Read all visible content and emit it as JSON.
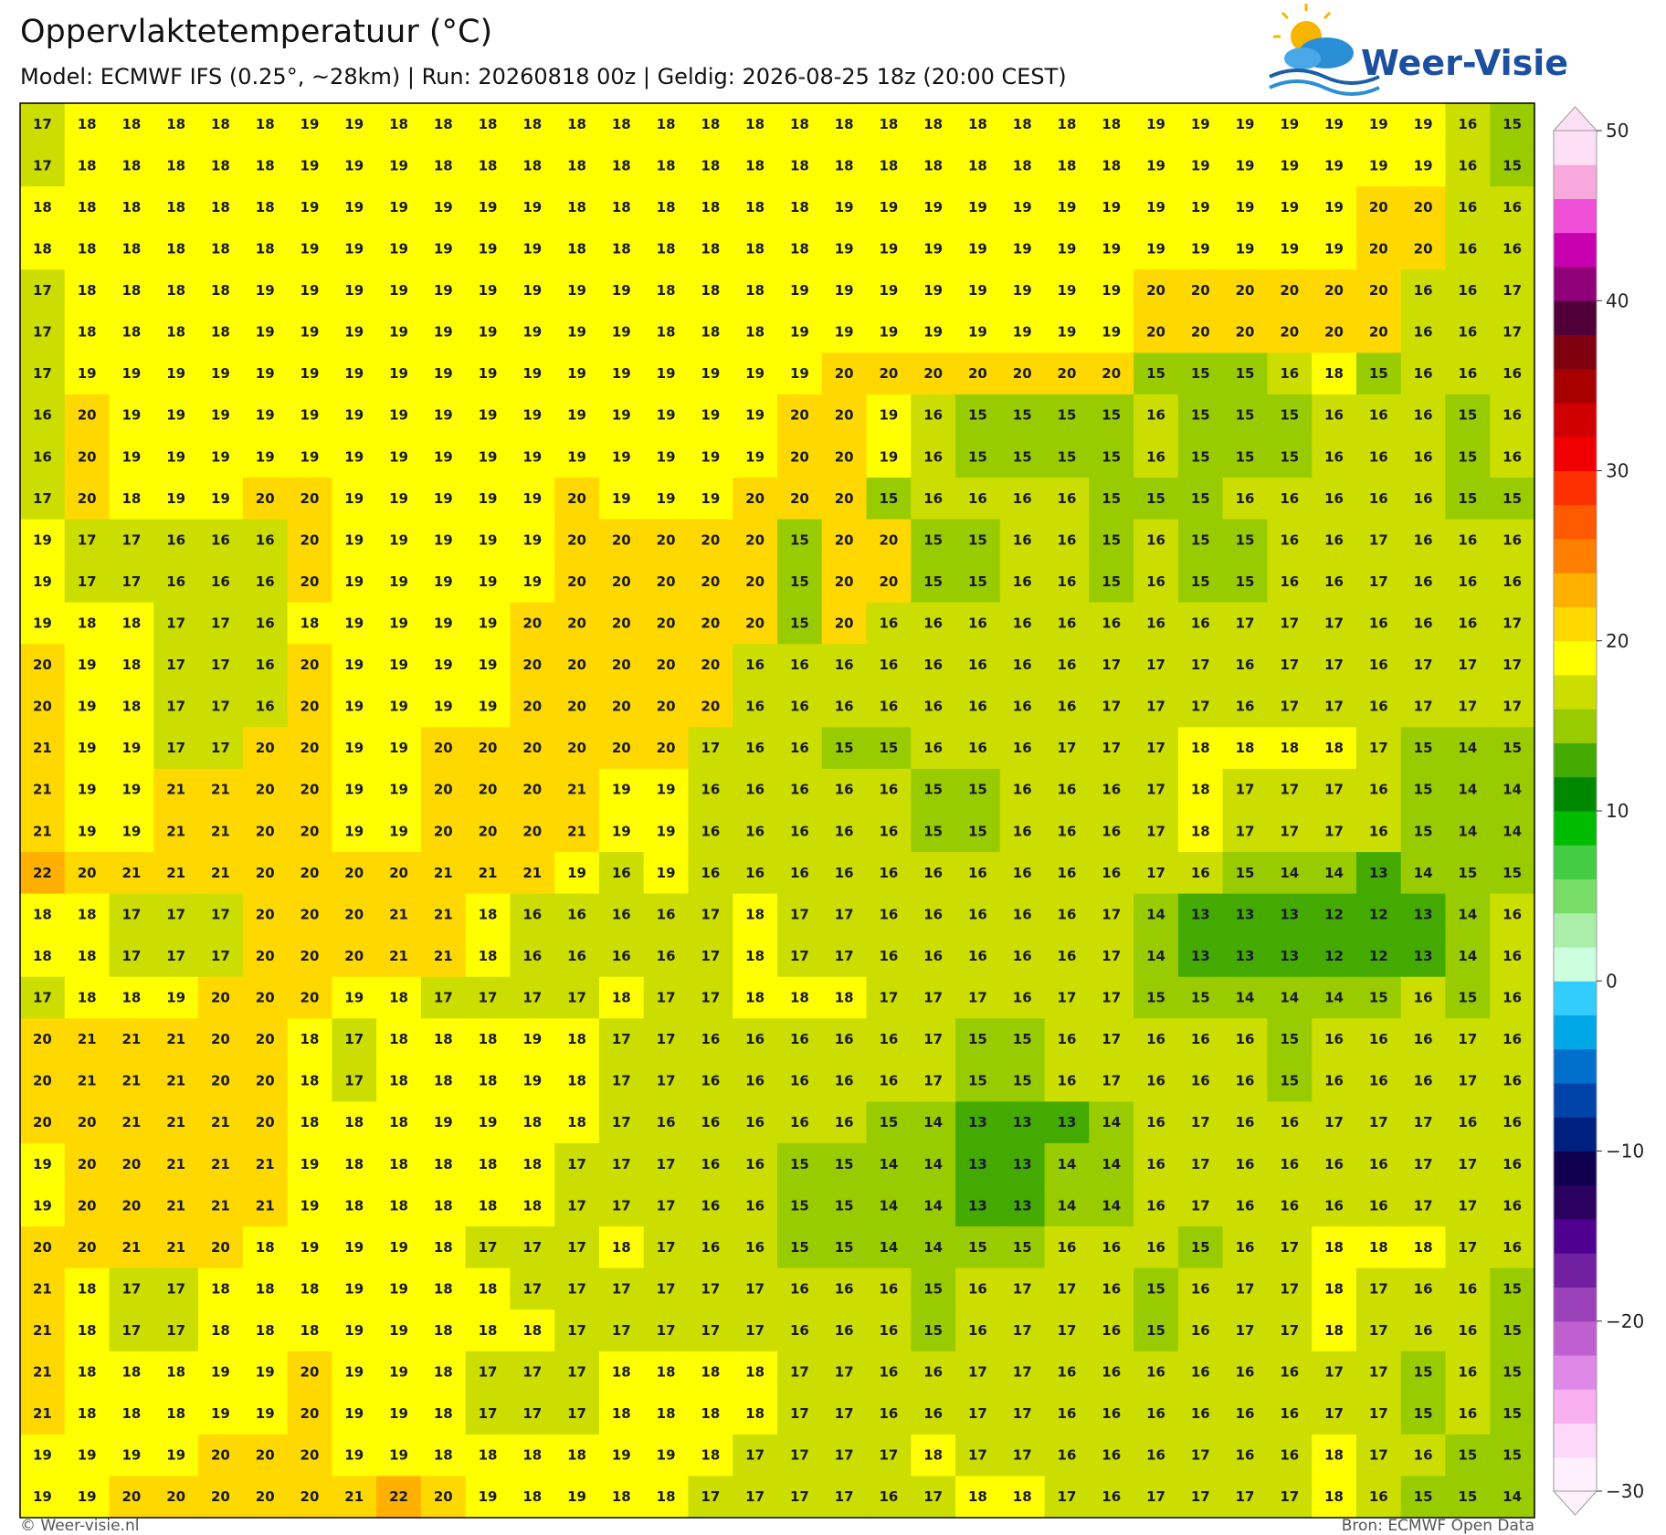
{
  "header": {
    "title": "Oppervlaktetemperatuur (°C)",
    "subtitle": "Model: ECMWF IFS (0.25°, ~28km)  |  Run: 20260818 00z  |  Geldig: 2026-08-25 18z (20:00 CEST)"
  },
  "logo": "Weer-Visie",
  "map": {
    "grid": [
      [
        17,
        18,
        18,
        18,
        18,
        18,
        19,
        19,
        18,
        18,
        18,
        18,
        18,
        18,
        18,
        18,
        18,
        18,
        18,
        18,
        18,
        18,
        18,
        18,
        18,
        19,
        19,
        19,
        19,
        19,
        19,
        19,
        16,
        15
      ],
      [
        17,
        18,
        18,
        18,
        18,
        18,
        19,
        19,
        19,
        18,
        18,
        18,
        18,
        18,
        18,
        18,
        18,
        18,
        18,
        18,
        18,
        18,
        18,
        18,
        18,
        19,
        19,
        19,
        19,
        19,
        19,
        19,
        16,
        15
      ],
      [
        18,
        18,
        18,
        18,
        18,
        18,
        19,
        19,
        19,
        19,
        19,
        19,
        18,
        18,
        18,
        18,
        18,
        18,
        19,
        19,
        19,
        19,
        19,
        19,
        19,
        19,
        19,
        19,
        19,
        19,
        20,
        20,
        16,
        16
      ],
      [
        18,
        18,
        18,
        18,
        18,
        18,
        19,
        19,
        19,
        19,
        19,
        19,
        18,
        18,
        18,
        18,
        18,
        18,
        19,
        19,
        19,
        19,
        19,
        19,
        19,
        19,
        19,
        19,
        19,
        19,
        20,
        20,
        16,
        16
      ],
      [
        17,
        18,
        18,
        18,
        18,
        19,
        19,
        19,
        19,
        19,
        19,
        19,
        19,
        19,
        18,
        18,
        18,
        19,
        19,
        19,
        19,
        19,
        19,
        19,
        19,
        20,
        20,
        20,
        20,
        20,
        20,
        16,
        16,
        17
      ],
      [
        17,
        18,
        18,
        18,
        18,
        19,
        19,
        19,
        19,
        19,
        19,
        19,
        19,
        19,
        18,
        18,
        18,
        19,
        19,
        19,
        19,
        19,
        19,
        19,
        19,
        20,
        20,
        20,
        20,
        20,
        20,
        16,
        16,
        17
      ],
      [
        17,
        19,
        19,
        19,
        19,
        19,
        19,
        19,
        19,
        19,
        19,
        19,
        19,
        19,
        19,
        19,
        19,
        19,
        20,
        20,
        20,
        20,
        20,
        20,
        20,
        15,
        15,
        15,
        16,
        18,
        15,
        16,
        16,
        16
      ],
      [
        16,
        20,
        19,
        19,
        19,
        19,
        19,
        19,
        19,
        19,
        19,
        19,
        19,
        19,
        19,
        19,
        19,
        20,
        20,
        19,
        16,
        15,
        15,
        15,
        15,
        16,
        15,
        15,
        15,
        16,
        16,
        16,
        15,
        16
      ],
      [
        16,
        20,
        19,
        19,
        19,
        19,
        19,
        19,
        19,
        19,
        19,
        19,
        19,
        19,
        19,
        19,
        19,
        20,
        20,
        19,
        16,
        15,
        15,
        15,
        15,
        16,
        15,
        15,
        15,
        16,
        16,
        16,
        15,
        16
      ],
      [
        17,
        20,
        18,
        19,
        19,
        20,
        20,
        19,
        19,
        19,
        19,
        19,
        20,
        19,
        19,
        19,
        20,
        20,
        20,
        15,
        16,
        16,
        16,
        16,
        15,
        15,
        15,
        16,
        16,
        16,
        16,
        16,
        15,
        15
      ],
      [
        19,
        17,
        17,
        16,
        16,
        16,
        20,
        19,
        19,
        19,
        19,
        19,
        20,
        20,
        20,
        20,
        20,
        15,
        20,
        20,
        15,
        15,
        16,
        16,
        15,
        16,
        15,
        15,
        16,
        16,
        17,
        16,
        16,
        16
      ],
      [
        19,
        17,
        17,
        16,
        16,
        16,
        20,
        19,
        19,
        19,
        19,
        19,
        20,
        20,
        20,
        20,
        20,
        15,
        20,
        20,
        15,
        15,
        16,
        16,
        15,
        16,
        15,
        15,
        16,
        16,
        17,
        16,
        16,
        16
      ],
      [
        19,
        18,
        18,
        17,
        17,
        16,
        18,
        19,
        19,
        19,
        19,
        20,
        20,
        20,
        20,
        20,
        20,
        15,
        20,
        16,
        16,
        16,
        16,
        16,
        16,
        16,
        16,
        17,
        17,
        17,
        16,
        16,
        16,
        17
      ],
      [
        20,
        19,
        18,
        17,
        17,
        16,
        20,
        19,
        19,
        19,
        19,
        20,
        20,
        20,
        20,
        20,
        16,
        16,
        16,
        16,
        16,
        16,
        16,
        16,
        17,
        17,
        17,
        16,
        17,
        17,
        16,
        17,
        17,
        17
      ],
      [
        20,
        19,
        18,
        17,
        17,
        16,
        20,
        19,
        19,
        19,
        19,
        20,
        20,
        20,
        20,
        20,
        16,
        16,
        16,
        16,
        16,
        16,
        16,
        16,
        17,
        17,
        17,
        16,
        17,
        17,
        16,
        17,
        17,
        17
      ],
      [
        21,
        19,
        19,
        17,
        17,
        20,
        20,
        19,
        19,
        20,
        20,
        20,
        20,
        20,
        20,
        17,
        16,
        16,
        15,
        15,
        16,
        16,
        16,
        17,
        17,
        17,
        18,
        18,
        18,
        18,
        17,
        15,
        14,
        15
      ],
      [
        21,
        19,
        19,
        21,
        21,
        20,
        20,
        19,
        19,
        20,
        20,
        20,
        21,
        19,
        19,
        16,
        16,
        16,
        16,
        16,
        15,
        15,
        16,
        16,
        16,
        17,
        18,
        17,
        17,
        17,
        16,
        15,
        14,
        14
      ],
      [
        21,
        19,
        19,
        21,
        21,
        20,
        20,
        19,
        19,
        20,
        20,
        20,
        21,
        19,
        19,
        16,
        16,
        16,
        16,
        16,
        15,
        15,
        16,
        16,
        16,
        17,
        18,
        17,
        17,
        17,
        16,
        15,
        14,
        14
      ],
      [
        22,
        20,
        21,
        21,
        21,
        20,
        20,
        20,
        20,
        21,
        21,
        21,
        19,
        16,
        19,
        16,
        16,
        16,
        16,
        16,
        16,
        16,
        16,
        16,
        16,
        17,
        16,
        15,
        14,
        14,
        13,
        14,
        15,
        15
      ],
      [
        18,
        18,
        17,
        17,
        17,
        20,
        20,
        20,
        21,
        21,
        18,
        16,
        16,
        16,
        16,
        17,
        18,
        17,
        17,
        16,
        16,
        16,
        16,
        16,
        17,
        14,
        13,
        13,
        13,
        12,
        12,
        13,
        14,
        16
      ],
      [
        18,
        18,
        17,
        17,
        17,
        20,
        20,
        20,
        21,
        21,
        18,
        16,
        16,
        16,
        16,
        17,
        18,
        17,
        17,
        16,
        16,
        16,
        16,
        16,
        17,
        14,
        13,
        13,
        13,
        12,
        12,
        13,
        14,
        16
      ],
      [
        17,
        18,
        18,
        19,
        20,
        20,
        20,
        19,
        18,
        17,
        17,
        17,
        17,
        18,
        17,
        17,
        18,
        18,
        18,
        17,
        17,
        17,
        16,
        17,
        17,
        15,
        15,
        14,
        14,
        14,
        15,
        16,
        15,
        16
      ],
      [
        20,
        21,
        21,
        21,
        20,
        20,
        18,
        17,
        18,
        18,
        18,
        19,
        18,
        17,
        17,
        16,
        16,
        16,
        16,
        16,
        17,
        15,
        15,
        16,
        17,
        16,
        16,
        16,
        15,
        16,
        16,
        16,
        17,
        16
      ],
      [
        20,
        21,
        21,
        21,
        20,
        20,
        18,
        17,
        18,
        18,
        18,
        19,
        18,
        17,
        17,
        16,
        16,
        16,
        16,
        16,
        17,
        15,
        15,
        16,
        17,
        16,
        16,
        16,
        15,
        16,
        16,
        16,
        17,
        16
      ],
      [
        20,
        20,
        21,
        21,
        21,
        20,
        18,
        18,
        18,
        19,
        19,
        18,
        18,
        17,
        16,
        16,
        16,
        16,
        16,
        15,
        14,
        13,
        13,
        13,
        14,
        16,
        17,
        16,
        16,
        17,
        17,
        17,
        16,
        16
      ],
      [
        19,
        20,
        20,
        21,
        21,
        21,
        19,
        18,
        18,
        18,
        18,
        18,
        17,
        17,
        17,
        16,
        16,
        15,
        15,
        14,
        14,
        13,
        13,
        14,
        14,
        16,
        17,
        16,
        16,
        16,
        16,
        17,
        17,
        16
      ],
      [
        19,
        20,
        20,
        21,
        21,
        21,
        19,
        18,
        18,
        18,
        18,
        18,
        17,
        17,
        17,
        16,
        16,
        15,
        15,
        14,
        14,
        13,
        13,
        14,
        14,
        16,
        17,
        16,
        16,
        16,
        16,
        17,
        17,
        16
      ],
      [
        20,
        20,
        21,
        21,
        20,
        18,
        19,
        19,
        19,
        18,
        17,
        17,
        17,
        18,
        17,
        16,
        16,
        15,
        15,
        14,
        14,
        15,
        15,
        16,
        16,
        16,
        15,
        16,
        17,
        18,
        18,
        18,
        17,
        16
      ],
      [
        21,
        18,
        17,
        17,
        18,
        18,
        18,
        19,
        19,
        18,
        18,
        17,
        17,
        17,
        17,
        17,
        17,
        16,
        16,
        16,
        15,
        16,
        17,
        17,
        16,
        15,
        16,
        17,
        17,
        18,
        17,
        16,
        16,
        15
      ],
      [
        21,
        18,
        17,
        17,
        18,
        18,
        18,
        19,
        19,
        18,
        18,
        18,
        17,
        17,
        17,
        17,
        17,
        16,
        16,
        16,
        15,
        16,
        17,
        17,
        16,
        15,
        16,
        17,
        17,
        18,
        17,
        16,
        16,
        15
      ],
      [
        21,
        18,
        18,
        18,
        19,
        19,
        20,
        19,
        19,
        18,
        17,
        17,
        17,
        18,
        18,
        18,
        18,
        17,
        17,
        16,
        16,
        17,
        17,
        16,
        16,
        16,
        16,
        16,
        16,
        17,
        17,
        15,
        16,
        15
      ],
      [
        21,
        18,
        18,
        18,
        19,
        19,
        20,
        19,
        19,
        18,
        17,
        17,
        17,
        18,
        18,
        18,
        18,
        17,
        17,
        16,
        16,
        17,
        17,
        16,
        16,
        16,
        16,
        16,
        16,
        17,
        17,
        15,
        16,
        15
      ],
      [
        19,
        19,
        19,
        19,
        20,
        20,
        20,
        19,
        19,
        18,
        18,
        18,
        18,
        19,
        19,
        18,
        17,
        17,
        17,
        17,
        18,
        17,
        17,
        16,
        16,
        16,
        17,
        16,
        16,
        18,
        17,
        16,
        15,
        15
      ],
      [
        19,
        19,
        20,
        20,
        20,
        20,
        20,
        21,
        22,
        20,
        19,
        18,
        19,
        18,
        18,
        17,
        17,
        17,
        17,
        16,
        17,
        18,
        18,
        17,
        16,
        17,
        17,
        17,
        17,
        18,
        16,
        15,
        15,
        14
      ]
    ]
  },
  "colorbar": {
    "lim": [
      -30,
      50
    ],
    "ticks": [
      {
        "value": -30,
        "label": "−30"
      },
      {
        "value": -20,
        "label": "−20"
      },
      {
        "value": -10,
        "label": "−10"
      },
      0,
      10,
      20,
      30,
      40,
      50
    ],
    "colors": [
      "#fff0fd",
      "#fdd8f8",
      "#f8b0f0",
      "#e088e8",
      "#c060d0",
      "#9a40b8",
      "#7020a0",
      "#500090",
      "#2a0060",
      "#100050",
      "#002080",
      "#0044aa",
      "#0070cc",
      "#00a8e8",
      "#33ccff",
      "#ccffdd",
      "#aaeeaa",
      "#77dd66",
      "#44cc44",
      "#00bb00",
      "#008800",
      "#44aa00",
      "#99cc00",
      "#ccdd00",
      "#ffff00",
      "#ffd800",
      "#ffb000",
      "#ff8000",
      "#ff5a00",
      "#ff3000",
      "#f00000",
      "#d00000",
      "#a80000",
      "#800010",
      "#500038",
      "#900078",
      "#c800b0",
      "#f050d8",
      "#f8a8dc",
      "#fde0f6"
    ]
  },
  "footer": {
    "left": "© Weer-visie.nl",
    "right": "Bron: ECMWF Open Data"
  }
}
